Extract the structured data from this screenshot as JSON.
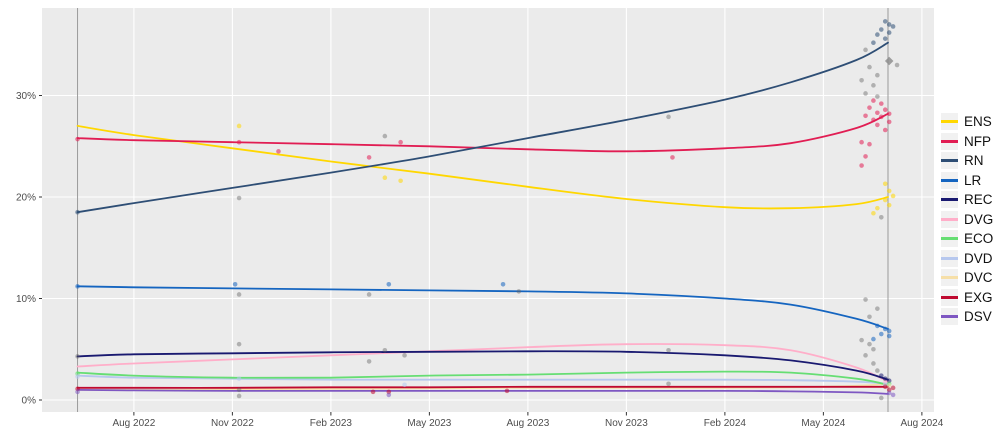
{
  "chart_data": {
    "type": "line",
    "title": "",
    "xlabel": "",
    "ylabel": "",
    "grid": true,
    "legend_position": "right",
    "panel_background": "#EBEBEB",
    "x_axis": {
      "domain": [
        2022.349,
        2024.611
      ],
      "ticks": [
        {
          "t": 2022.583,
          "label": "Aug 2022"
        },
        {
          "t": 2022.833,
          "label": "Nov 2022"
        },
        {
          "t": 2023.083,
          "label": "Feb 2023"
        },
        {
          "t": 2023.333,
          "label": "May 2023"
        },
        {
          "t": 2023.583,
          "label": "Aug 2023"
        },
        {
          "t": 2023.833,
          "label": "Nov 2023"
        },
        {
          "t": 2024.083,
          "label": "Feb 2024"
        },
        {
          "t": 2024.333,
          "label": "May 2024"
        },
        {
          "t": 2024.583,
          "label": "Aug 2024"
        }
      ]
    },
    "y_axis": {
      "domain": [
        -1.2,
        38.6
      ],
      "ticks": [
        {
          "v": 0,
          "label": "0%"
        },
        {
          "v": 10,
          "label": "10%"
        },
        {
          "v": 20,
          "label": "20%"
        },
        {
          "v": 30,
          "label": "30%"
        }
      ]
    },
    "reference_lines_x": [
      2022.44,
      2024.497
    ],
    "series": [
      {
        "code": "ENS",
        "label": "ENS",
        "color": "#FFD700",
        "points": [
          [
            2022.44,
            27.0
          ],
          [
            2022.583,
            26.1
          ],
          [
            2022.833,
            24.8
          ],
          [
            2023.083,
            23.5
          ],
          [
            2023.333,
            22.3
          ],
          [
            2023.583,
            21.0
          ],
          [
            2023.833,
            19.8
          ],
          [
            2024.083,
            19.0
          ],
          [
            2024.25,
            18.9
          ],
          [
            2024.417,
            19.3
          ],
          [
            2024.497,
            20.0
          ]
        ]
      },
      {
        "code": "NFP",
        "label": "NFP",
        "color": "#E11D53",
        "points": [
          [
            2022.44,
            25.8
          ],
          [
            2022.583,
            25.6
          ],
          [
            2022.833,
            25.4
          ],
          [
            2023.083,
            25.2
          ],
          [
            2023.333,
            25.0
          ],
          [
            2023.583,
            24.7
          ],
          [
            2023.833,
            24.5
          ],
          [
            2024.083,
            24.8
          ],
          [
            2024.25,
            25.3
          ],
          [
            2024.417,
            26.8
          ],
          [
            2024.497,
            28.2
          ]
        ]
      },
      {
        "code": "RN",
        "label": "RN",
        "color": "#2E4E75",
        "points": [
          [
            2022.44,
            18.5
          ],
          [
            2022.583,
            19.4
          ],
          [
            2022.833,
            20.9
          ],
          [
            2023.083,
            22.4
          ],
          [
            2023.333,
            24.0
          ],
          [
            2023.583,
            25.8
          ],
          [
            2023.833,
            27.6
          ],
          [
            2024.083,
            29.6
          ],
          [
            2024.25,
            31.3
          ],
          [
            2024.417,
            33.5
          ],
          [
            2024.497,
            35.2
          ]
        ]
      },
      {
        "code": "LR",
        "label": "LR",
        "color": "#1565C0",
        "points": [
          [
            2022.44,
            11.2
          ],
          [
            2022.583,
            11.1
          ],
          [
            2022.833,
            11.0
          ],
          [
            2023.083,
            10.9
          ],
          [
            2023.333,
            10.8
          ],
          [
            2023.583,
            10.7
          ],
          [
            2023.833,
            10.5
          ],
          [
            2024.083,
            10.0
          ],
          [
            2024.25,
            9.4
          ],
          [
            2024.417,
            8.0
          ],
          [
            2024.497,
            7.0
          ]
        ]
      },
      {
        "code": "REC",
        "label": "REC",
        "color": "#191970",
        "points": [
          [
            2022.44,
            4.3
          ],
          [
            2022.583,
            4.5
          ],
          [
            2022.833,
            4.6
          ],
          [
            2023.083,
            4.7
          ],
          [
            2023.333,
            4.75
          ],
          [
            2023.583,
            4.8
          ],
          [
            2023.833,
            4.75
          ],
          [
            2024.083,
            4.4
          ],
          [
            2024.25,
            3.9
          ],
          [
            2024.417,
            2.9
          ],
          [
            2024.497,
            2.0
          ]
        ]
      },
      {
        "code": "DVG",
        "label": "DVG",
        "color": "#FFAEC9",
        "points": [
          [
            2022.44,
            3.3
          ],
          [
            2022.583,
            3.6
          ],
          [
            2022.833,
            4.0
          ],
          [
            2023.083,
            4.4
          ],
          [
            2023.333,
            4.8
          ],
          [
            2023.583,
            5.2
          ],
          [
            2023.833,
            5.5
          ],
          [
            2024.083,
            5.4
          ],
          [
            2024.25,
            4.9
          ],
          [
            2024.417,
            3.2
          ],
          [
            2024.497,
            1.8
          ]
        ]
      },
      {
        "code": "ECO",
        "label": "ECO",
        "color": "#66DE73",
        "points": [
          [
            2022.44,
            2.7
          ],
          [
            2022.583,
            2.4
          ],
          [
            2022.833,
            2.2
          ],
          [
            2023.083,
            2.2
          ],
          [
            2023.333,
            2.4
          ],
          [
            2023.583,
            2.5
          ],
          [
            2023.833,
            2.7
          ],
          [
            2024.083,
            2.8
          ],
          [
            2024.25,
            2.7
          ],
          [
            2024.417,
            2.1
          ],
          [
            2024.497,
            1.5
          ]
        ]
      },
      {
        "code": "DVD",
        "label": "DVD",
        "color": "#B7C8EE",
        "points": [
          [
            2022.44,
            2.4
          ],
          [
            2022.583,
            2.2
          ],
          [
            2022.833,
            2.1
          ],
          [
            2023.083,
            2.0
          ],
          [
            2023.333,
            2.0
          ],
          [
            2023.583,
            2.0
          ],
          [
            2023.833,
            2.0
          ],
          [
            2024.083,
            2.0
          ],
          [
            2024.25,
            1.95
          ],
          [
            2024.417,
            1.8
          ],
          [
            2024.497,
            1.6
          ]
        ]
      },
      {
        "code": "DVC",
        "label": "DVC",
        "color": "#F6DFA8",
        "points": [
          [
            2022.44,
            1.0
          ],
          [
            2022.583,
            1.0
          ],
          [
            2022.833,
            1.05
          ],
          [
            2023.083,
            1.1
          ],
          [
            2023.333,
            1.15
          ],
          [
            2023.583,
            1.2
          ],
          [
            2023.833,
            1.2
          ],
          [
            2024.083,
            1.2
          ],
          [
            2024.25,
            1.25
          ],
          [
            2024.417,
            1.4
          ],
          [
            2024.497,
            1.6
          ]
        ]
      },
      {
        "code": "EXG",
        "label": "EXG",
        "color": "#BF0A30",
        "points": [
          [
            2022.44,
            1.2
          ],
          [
            2022.583,
            1.2
          ],
          [
            2022.833,
            1.2
          ],
          [
            2023.083,
            1.25
          ],
          [
            2023.333,
            1.25
          ],
          [
            2023.583,
            1.3
          ],
          [
            2023.833,
            1.3
          ],
          [
            2024.083,
            1.3
          ],
          [
            2024.25,
            1.3
          ],
          [
            2024.417,
            1.3
          ],
          [
            2024.497,
            1.3
          ]
        ]
      },
      {
        "code": "DSV",
        "label": "DSV",
        "color": "#7E57C2",
        "points": [
          [
            2022.44,
            1.0
          ],
          [
            2022.583,
            0.95
          ],
          [
            2022.833,
            0.9
          ],
          [
            2023.083,
            0.9
          ],
          [
            2023.333,
            0.9
          ],
          [
            2023.583,
            0.9
          ],
          [
            2023.833,
            0.9
          ],
          [
            2024.083,
            0.9
          ],
          [
            2024.25,
            0.85
          ],
          [
            2024.417,
            0.75
          ],
          [
            2024.497,
            0.6
          ]
        ]
      }
    ],
    "draw_order": [
      "DVC",
      "DVD",
      "DSV",
      "ECO",
      "DVG",
      "EXG",
      "REC",
      "LR",
      "ENS",
      "NFP",
      "RN"
    ],
    "scatter_note": "individual poll results; NA = neutral grey point, ND = grey diamond",
    "scatter": [
      [
        2022.44,
        25.7,
        "NFP"
      ],
      [
        2022.44,
        18.5,
        "RN"
      ],
      [
        2022.44,
        11.2,
        "LR"
      ],
      [
        2022.44,
        4.3,
        "NA"
      ],
      [
        2022.44,
        2.6,
        "ECO"
      ],
      [
        2022.44,
        2.3,
        "DVD"
      ],
      [
        2022.44,
        1.1,
        "EXG"
      ],
      [
        2022.44,
        0.8,
        "DSV"
      ],
      [
        2022.85,
        27.0,
        "ENS"
      ],
      [
        2022.85,
        25.4,
        "NFP"
      ],
      [
        2022.85,
        19.9,
        "NA"
      ],
      [
        2022.84,
        11.4,
        "LR"
      ],
      [
        2022.85,
        10.4,
        "NA"
      ],
      [
        2022.85,
        5.5,
        "NA"
      ],
      [
        2022.85,
        2.1,
        "DVD"
      ],
      [
        2022.85,
        1.0,
        "NA"
      ],
      [
        2022.85,
        0.4,
        "NA"
      ],
      [
        2022.95,
        24.5,
        "NFP"
      ],
      [
        2023.18,
        23.9,
        "NFP"
      ],
      [
        2023.18,
        10.4,
        "NA"
      ],
      [
        2023.18,
        3.8,
        "NA"
      ],
      [
        2023.19,
        0.8,
        "EXG"
      ],
      [
        2023.22,
        26.0,
        "NA"
      ],
      [
        2023.22,
        21.9,
        "ENS"
      ],
      [
        2023.23,
        11.4,
        "LR"
      ],
      [
        2023.22,
        4.9,
        "NA"
      ],
      [
        2023.23,
        0.8,
        "EXG"
      ],
      [
        2023.23,
        0.5,
        "DSV"
      ],
      [
        2023.26,
        25.4,
        "NFP"
      ],
      [
        2023.26,
        21.6,
        "ENS"
      ],
      [
        2023.27,
        4.4,
        "NA"
      ],
      [
        2023.27,
        1.5,
        "DVD"
      ],
      [
        2023.52,
        11.4,
        "LR"
      ],
      [
        2023.56,
        10.7,
        "NA"
      ],
      [
        2023.53,
        0.9,
        "EXG"
      ],
      [
        2023.94,
        27.9,
        "NA"
      ],
      [
        2023.95,
        23.9,
        "NFP"
      ],
      [
        2023.94,
        4.9,
        "NA"
      ],
      [
        2023.94,
        1.6,
        "NA"
      ],
      [
        2024.49,
        37.3,
        "RN"
      ],
      [
        2024.5,
        37.0,
        "RN"
      ],
      [
        2024.51,
        36.8,
        "RN"
      ],
      [
        2024.48,
        36.5,
        "RN"
      ],
      [
        2024.5,
        36.2,
        "RN"
      ],
      [
        2024.47,
        36.0,
        "RN"
      ],
      [
        2024.49,
        35.6,
        "RN"
      ],
      [
        2024.46,
        35.2,
        "RN"
      ],
      [
        2024.44,
        34.5,
        "NA"
      ],
      [
        2024.5,
        33.4,
        "ND"
      ],
      [
        2024.52,
        33.0,
        "NA"
      ],
      [
        2024.45,
        32.8,
        "NA"
      ],
      [
        2024.47,
        32.0,
        "NA"
      ],
      [
        2024.43,
        31.5,
        "NA"
      ],
      [
        2024.46,
        31.0,
        "NA"
      ],
      [
        2024.44,
        30.2,
        "NA"
      ],
      [
        2024.47,
        29.9,
        "NA"
      ],
      [
        2024.46,
        29.5,
        "NFP"
      ],
      [
        2024.48,
        29.2,
        "NFP"
      ],
      [
        2024.45,
        28.8,
        "NFP"
      ],
      [
        2024.49,
        28.6,
        "NFP"
      ],
      [
        2024.47,
        28.3,
        "NFP"
      ],
      [
        2024.5,
        28.2,
        "NFP"
      ],
      [
        2024.44,
        28.0,
        "NFP"
      ],
      [
        2024.48,
        27.9,
        "NFP"
      ],
      [
        2024.46,
        27.6,
        "NFP"
      ],
      [
        2024.5,
        27.4,
        "NFP"
      ],
      [
        2024.47,
        27.1,
        "NFP"
      ],
      [
        2024.49,
        26.6,
        "NFP"
      ],
      [
        2024.43,
        25.4,
        "NFP"
      ],
      [
        2024.45,
        25.2,
        "NFP"
      ],
      [
        2024.44,
        24.0,
        "NFP"
      ],
      [
        2024.43,
        23.1,
        "NFP"
      ],
      [
        2024.49,
        21.3,
        "ENS"
      ],
      [
        2024.5,
        20.6,
        "ENS"
      ],
      [
        2024.51,
        20.1,
        "ENS"
      ],
      [
        2024.49,
        19.7,
        "ENS"
      ],
      [
        2024.5,
        19.2,
        "ENS"
      ],
      [
        2024.47,
        18.9,
        "ENS"
      ],
      [
        2024.46,
        18.4,
        "ENS"
      ],
      [
        2024.48,
        18.0,
        "NA"
      ],
      [
        2024.44,
        9.9,
        "NA"
      ],
      [
        2024.47,
        9.0,
        "NA"
      ],
      [
        2024.45,
        8.2,
        "NA"
      ],
      [
        2024.47,
        7.3,
        "LR"
      ],
      [
        2024.49,
        7.0,
        "LR"
      ],
      [
        2024.5,
        6.8,
        "LR"
      ],
      [
        2024.48,
        6.5,
        "LR"
      ],
      [
        2024.5,
        6.3,
        "LR"
      ],
      [
        2024.46,
        6.0,
        "LR"
      ],
      [
        2024.43,
        5.9,
        "NA"
      ],
      [
        2024.45,
        5.5,
        "NA"
      ],
      [
        2024.46,
        5.0,
        "NA"
      ],
      [
        2024.44,
        4.4,
        "NA"
      ],
      [
        2024.46,
        3.6,
        "NA"
      ],
      [
        2024.47,
        2.9,
        "NA"
      ],
      [
        2024.48,
        2.4,
        "REC"
      ],
      [
        2024.49,
        2.1,
        "REC"
      ],
      [
        2024.5,
        1.9,
        "REC"
      ],
      [
        2024.49,
        1.7,
        "DVG"
      ],
      [
        2024.5,
        1.6,
        "ECO"
      ],
      [
        2024.49,
        1.5,
        "DVD"
      ],
      [
        2024.5,
        1.4,
        "DVC"
      ],
      [
        2024.49,
        1.3,
        "EXG"
      ],
      [
        2024.51,
        1.2,
        "EXG"
      ],
      [
        2024.5,
        1.0,
        "EXG"
      ],
      [
        2024.5,
        0.7,
        "DSV"
      ],
      [
        2024.51,
        0.5,
        "DSV"
      ],
      [
        2024.48,
        0.2,
        "NA"
      ]
    ],
    "legend": {
      "entries": [
        "ENS",
        "NFP",
        "RN",
        "LR",
        "REC",
        "DVG",
        "ECO",
        "DVD",
        "DVC",
        "EXG",
        "DSV"
      ]
    }
  }
}
